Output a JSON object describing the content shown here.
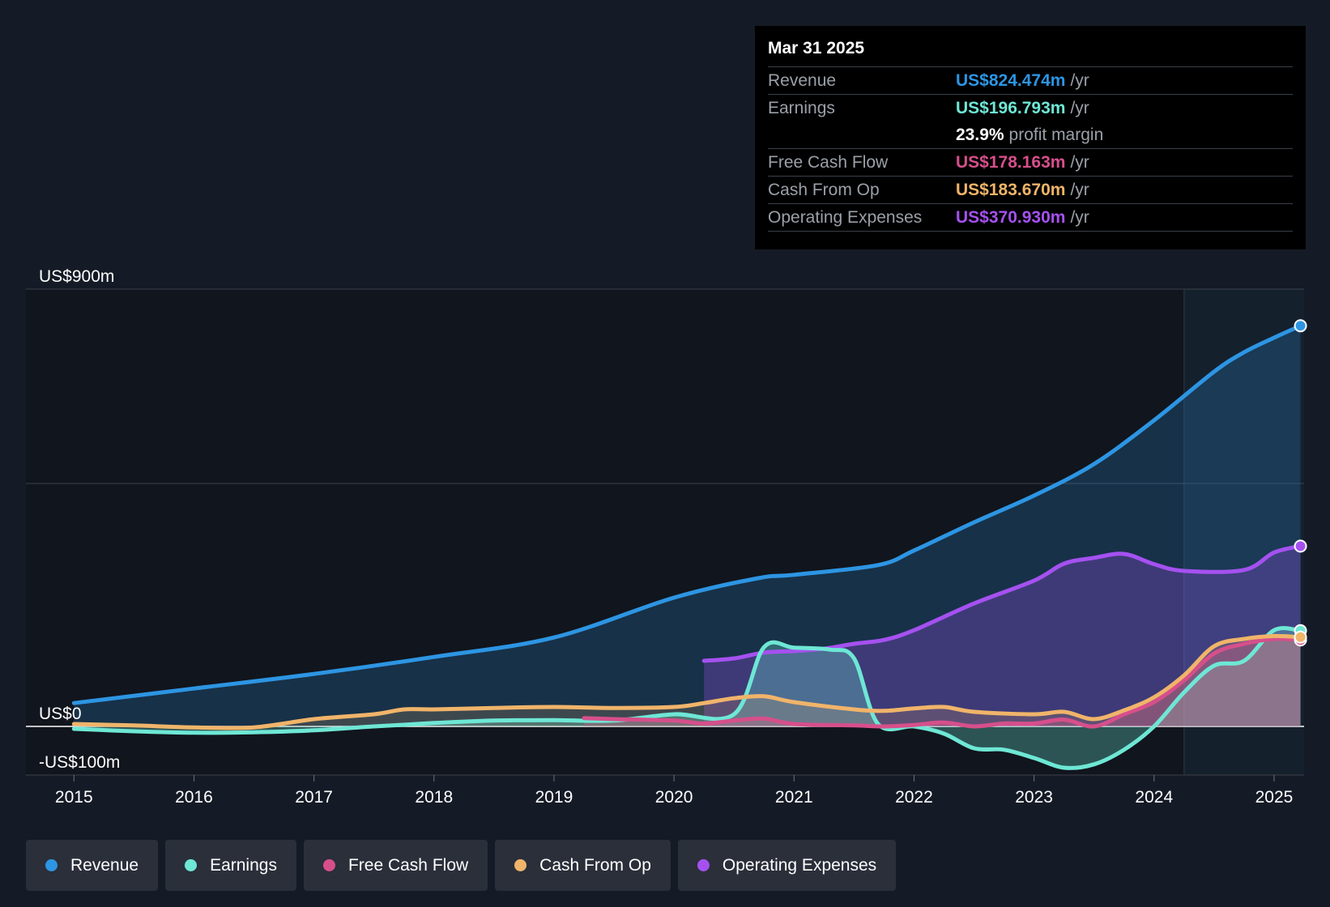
{
  "tooltip": {
    "date": "Mar 31 2025",
    "rows": [
      {
        "label": "Revenue",
        "value": "US$824.474m",
        "unit": "/yr",
        "color": "#2d95e3"
      },
      {
        "label": "Earnings",
        "value": "US$196.793m",
        "unit": "/yr",
        "color": "#6ee7d5"
      },
      {
        "label": "",
        "value": "23.9%",
        "unit": "profit margin",
        "color": "#ffffff"
      },
      {
        "label": "Free Cash Flow",
        "value": "US$178.163m",
        "unit": "/yr",
        "color": "#d64f8b"
      },
      {
        "label": "Cash From Op",
        "value": "US$183.670m",
        "unit": "/yr",
        "color": "#f0b46a"
      },
      {
        "label": "Operating Expenses",
        "value": "US$370.930m",
        "unit": "/yr",
        "color": "#a551f0"
      }
    ]
  },
  "legend": [
    {
      "label": "Revenue",
      "color": "#2d95e3"
    },
    {
      "label": "Earnings",
      "color": "#6ee7d5"
    },
    {
      "label": "Free Cash Flow",
      "color": "#d64f8b"
    },
    {
      "label": "Cash From Op",
      "color": "#f0b46a"
    },
    {
      "label": "Operating Expenses",
      "color": "#a551f0"
    }
  ],
  "chart_data": {
    "type": "area",
    "title": "",
    "xlabel": "",
    "ylabel": "",
    "xlim": [
      2014.6,
      2025.25
    ],
    "ylim": [
      -100,
      900
    ],
    "x_ticks": [
      2015,
      2016,
      2017,
      2018,
      2019,
      2020,
      2021,
      2022,
      2023,
      2024,
      2025
    ],
    "x_tick_labels": [
      "2015",
      "2016",
      "2017",
      "2018",
      "2019",
      "2020",
      "2021",
      "2022",
      "2023",
      "2024",
      "2025"
    ],
    "y_tick_labels": [
      {
        "value": 900,
        "label": "US$900m"
      },
      {
        "value": 0,
        "label": "US$0"
      },
      {
        "value": -100,
        "label": "-US$100m"
      }
    ],
    "gridlines_y": [
      900,
      500,
      0,
      -100
    ],
    "forecast_shade_start": 2024.25,
    "series": [
      {
        "name": "Revenue",
        "color": "#2d95e3",
        "x": [
          2015,
          2016,
          2017,
          2018,
          2019,
          2020,
          2020.7,
          2021,
          2021.7,
          2022,
          2022.5,
          2023,
          2023.5,
          2024,
          2024.5,
          2024.75,
          2025,
          2025.22
        ],
        "y": [
          48,
          78,
          108,
          143,
          183,
          265,
          305,
          312,
          332,
          362,
          420,
          475,
          540,
          630,
          730,
          770,
          800,
          824.5
        ]
      },
      {
        "name": "Operating Expenses",
        "color": "#a551f0",
        "x": [
          2020.25,
          2020.5,
          2020.75,
          2021,
          2021.25,
          2021.5,
          2021.75,
          2022,
          2022.5,
          2023,
          2023.25,
          2023.5,
          2023.75,
          2024,
          2024.25,
          2024.75,
          2025,
          2025.22
        ],
        "y": [
          135,
          140,
          152,
          155,
          160,
          170,
          178,
          198,
          253,
          300,
          335,
          347,
          355,
          334,
          320,
          322,
          358,
          371
        ]
      },
      {
        "name": "Earnings",
        "color": "#6ee7d5",
        "x": [
          2015,
          2015.5,
          2016,
          2016.5,
          2017,
          2017.5,
          2018,
          2018.5,
          2019,
          2019.5,
          2020,
          2020.5,
          2020.75,
          2021,
          2021.3,
          2021.5,
          2021.7,
          2022,
          2022.25,
          2022.5,
          2022.75,
          2023,
          2023.25,
          2023.5,
          2023.75,
          2024,
          2024.25,
          2024.5,
          2024.75,
          2025,
          2025.22
        ],
        "y": [
          -5,
          -10,
          -13,
          -12,
          -8,
          0,
          7,
          12,
          13,
          12,
          25,
          25,
          163,
          162,
          158,
          140,
          5,
          0,
          -15,
          -45,
          -48,
          -65,
          -85,
          -78,
          -48,
          0,
          70,
          125,
          135,
          198,
          197
        ]
      },
      {
        "name": "Free Cash Flow",
        "color": "#d64f8b",
        "x": [
          2019.25,
          2019.5,
          2020,
          2020.25,
          2020.5,
          2020.75,
          2021,
          2021.5,
          2021.75,
          2022,
          2022.25,
          2022.5,
          2022.75,
          2023,
          2023.25,
          2023.5,
          2023.75,
          2024,
          2024.25,
          2024.5,
          2024.75,
          2025,
          2025.22
        ],
        "y": [
          17,
          15,
          12,
          6,
          12,
          16,
          5,
          2,
          0,
          3,
          8,
          0,
          6,
          6,
          14,
          0,
          25,
          50,
          95,
          150,
          170,
          180,
          178
        ]
      },
      {
        "name": "Cash From Op",
        "color": "#f0b46a",
        "x": [
          2015,
          2015.5,
          2016,
          2016.5,
          2017,
          2017.5,
          2017.75,
          2018,
          2018.5,
          2019,
          2019.5,
          2020,
          2020.25,
          2020.5,
          2020.75,
          2021,
          2021.5,
          2021.75,
          2022,
          2022.25,
          2022.5,
          2023,
          2023.25,
          2023.5,
          2023.75,
          2024,
          2024.25,
          2024.5,
          2024.75,
          2025,
          2025.22
        ],
        "y": [
          5,
          2,
          -2,
          -2,
          15,
          25,
          35,
          35,
          38,
          40,
          38,
          40,
          48,
          58,
          62,
          50,
          35,
          32,
          37,
          40,
          30,
          25,
          30,
          15,
          33,
          60,
          105,
          165,
          180,
          186,
          183.7
        ]
      }
    ]
  }
}
